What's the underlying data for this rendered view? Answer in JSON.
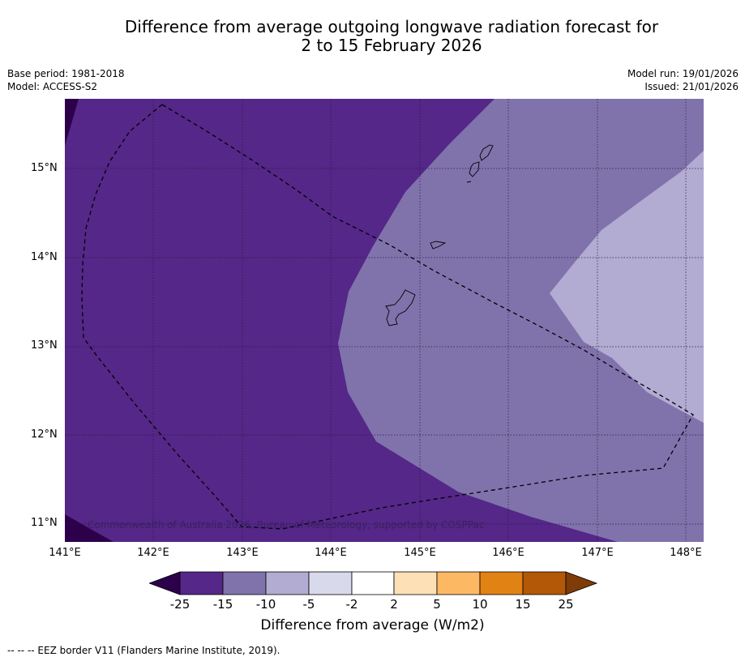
{
  "title_line1": "Difference from average outgoing longwave radiation forecast for",
  "title_line2": "2 to 15 February 2026",
  "meta": {
    "base_period": "Base period: 1981-2018",
    "model": "Model: ACCESS-S2",
    "model_run": "Model run: 19/01/2026",
    "issued": "Issued: 21/01/2026"
  },
  "map": {
    "lat_labels": [
      "15°N",
      "14°N",
      "13°N",
      "12°N",
      "11°N"
    ],
    "lon_labels": [
      "141°E",
      "142°E",
      "143°E",
      "144°E",
      "145°E",
      "146°E",
      "147°E",
      "148°E"
    ],
    "copyright": "Commonwealth of Australia 2026, Bureau of Meteorology, supported by COSPPac"
  },
  "colorbar": {
    "ticks": [
      "-25",
      "-15",
      "-10",
      "-5",
      "-2",
      "2",
      "5",
      "10",
      "15",
      "25"
    ],
    "colors": [
      "#2d004b",
      "#542788",
      "#8073ac",
      "#b2abd2",
      "#d8daeb",
      "#ffffff",
      "#fee0b6",
      "#fdb863",
      "#e08214",
      "#b35806",
      "#7f3b08"
    ],
    "label": "Difference from average (W/m2)"
  },
  "footnote": "--  --  -- EEZ border V11 (Flanders Marine Institute, 2019)."
}
